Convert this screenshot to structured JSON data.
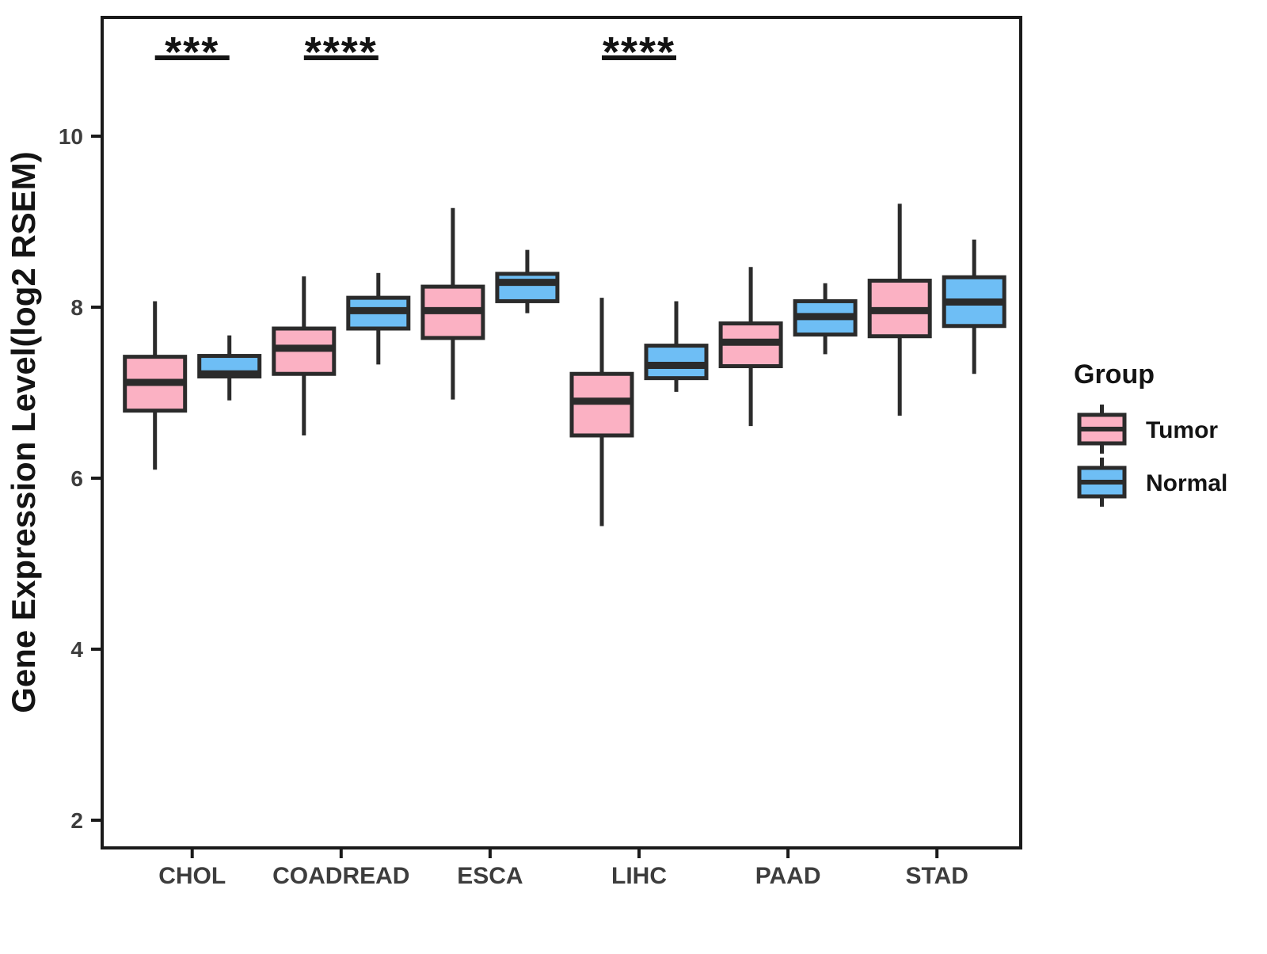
{
  "figure": {
    "background": "#ffffff"
  },
  "y_axis": {
    "label": "Gene Expression Level(log2 RSEM)",
    "tick_labels": [
      "2",
      "4",
      "6",
      "8",
      "10"
    ]
  },
  "x_axis": {
    "tick_labels": [
      "CHOL",
      "COADREAD",
      "ESCA",
      "LIHC",
      "PAAD",
      "STAD"
    ]
  },
  "legend": {
    "title": "Group",
    "items": [
      {
        "label": "Tumor",
        "color": "#FBB1C3"
      },
      {
        "label": "Normal",
        "color": "#6EBEF5"
      }
    ]
  },
  "colors": {
    "ink": "#2b2b2b",
    "panel_border": "#1a1a1a",
    "axis_text": "#3d3d3d",
    "annotation": "#141414"
  },
  "chart_data": {
    "type": "boxplot",
    "title": "",
    "xlabel": "",
    "ylabel": "Gene Expression Level(log2 RSEM)",
    "categories": [
      "CHOL",
      "COADREAD",
      "ESCA",
      "LIHC",
      "PAAD",
      "STAD"
    ],
    "y_ticks": [
      2,
      4,
      6,
      8,
      10
    ],
    "ylim": [
      1.7,
      11.4
    ],
    "grid": false,
    "legend_position": "right",
    "series": [
      {
        "name": "Tumor",
        "color": "#FBB1C3",
        "boxes": [
          {
            "category": "CHOL",
            "min": 6.1,
            "q1": 6.79,
            "median": 7.12,
            "q3": 7.42,
            "max": 8.07
          },
          {
            "category": "COADREAD",
            "min": 6.5,
            "q1": 7.22,
            "median": 7.52,
            "q3": 7.75,
            "max": 8.36
          },
          {
            "category": "ESCA",
            "min": 6.92,
            "q1": 7.64,
            "median": 7.96,
            "q3": 8.24,
            "max": 9.16
          },
          {
            "category": "LIHC",
            "min": 5.44,
            "q1": 6.5,
            "median": 6.9,
            "q3": 7.22,
            "max": 8.11
          },
          {
            "category": "PAAD",
            "min": 6.61,
            "q1": 7.31,
            "median": 7.59,
            "q3": 7.81,
            "max": 8.47
          },
          {
            "category": "STAD",
            "min": 6.73,
            "q1": 7.66,
            "median": 7.96,
            "q3": 8.31,
            "max": 9.21
          }
        ]
      },
      {
        "name": "Normal",
        "color": "#6EBEF5",
        "boxes": [
          {
            "category": "CHOL",
            "min": 6.91,
            "q1": 7.19,
            "median": 7.22,
            "q3": 7.43,
            "max": 7.67
          },
          {
            "category": "COADREAD",
            "min": 7.33,
            "q1": 7.75,
            "median": 7.96,
            "q3": 8.11,
            "max": 8.4
          },
          {
            "category": "ESCA",
            "min": 7.93,
            "q1": 8.07,
            "median": 8.29,
            "q3": 8.39,
            "max": 8.67
          },
          {
            "category": "LIHC",
            "min": 7.01,
            "q1": 7.17,
            "median": 7.32,
            "q3": 7.55,
            "max": 8.07
          },
          {
            "category": "PAAD",
            "min": 7.45,
            "q1": 7.68,
            "median": 7.89,
            "q3": 8.07,
            "max": 8.28
          },
          {
            "category": "STAD",
            "min": 7.22,
            "q1": 7.78,
            "median": 8.06,
            "q3": 8.35,
            "max": 8.79
          }
        ]
      }
    ],
    "significance": [
      {
        "category": "CHOL",
        "label": "***"
      },
      {
        "category": "COADREAD",
        "label": "****"
      },
      {
        "category": "LIHC",
        "label": "****"
      }
    ]
  }
}
